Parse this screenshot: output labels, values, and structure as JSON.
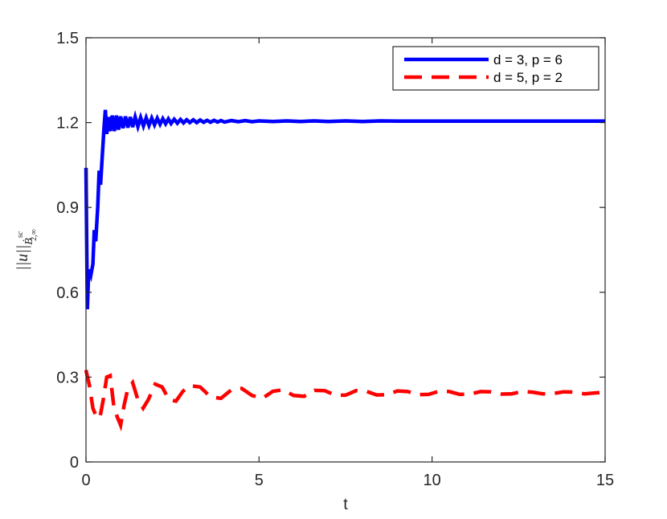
{
  "chart_data": {
    "type": "line",
    "xlabel": "t",
    "ylabel": {
      "norm": "||u||",
      "base": "Ḃ",
      "superscript": "sc",
      "subscript": "2,∞"
    },
    "xlim": [
      0,
      15
    ],
    "ylim": [
      0,
      1.5
    ],
    "xticks": [
      "0",
      "5",
      "10",
      "15"
    ],
    "yticks": [
      "0",
      "0.3",
      "0.6",
      "0.9",
      "1.2",
      "1.5"
    ],
    "grid": false,
    "legend_position": "top-right",
    "series": [
      {
        "name": "d = 3, p = 6",
        "color": "#0000ff",
        "style": "solid",
        "points": [
          [
            0.0,
            1.04
          ],
          [
            0.04,
            0.54
          ],
          [
            0.08,
            0.68
          ],
          [
            0.14,
            0.66
          ],
          [
            0.2,
            0.7
          ],
          [
            0.24,
            0.82
          ],
          [
            0.28,
            0.78
          ],
          [
            0.34,
            0.9
          ],
          [
            0.38,
            1.03
          ],
          [
            0.42,
            0.98
          ],
          [
            0.46,
            1.06
          ],
          [
            0.52,
            1.18
          ],
          [
            0.56,
            1.245
          ],
          [
            0.6,
            1.16
          ],
          [
            0.66,
            1.22
          ],
          [
            0.7,
            1.17
          ],
          [
            0.76,
            1.225
          ],
          [
            0.82,
            1.17
          ],
          [
            0.88,
            1.225
          ],
          [
            0.94,
            1.175
          ],
          [
            1.0,
            1.222
          ],
          [
            1.07,
            1.18
          ],
          [
            1.14,
            1.222
          ],
          [
            1.21,
            1.182
          ],
          [
            1.28,
            1.22
          ],
          [
            1.35,
            1.184
          ],
          [
            1.42,
            1.22
          ],
          [
            1.5,
            1.186
          ],
          [
            1.58,
            1.218
          ],
          [
            1.66,
            1.188
          ],
          [
            1.74,
            1.217
          ],
          [
            1.82,
            1.19
          ],
          [
            1.9,
            1.216
          ],
          [
            1.98,
            1.192
          ],
          [
            2.06,
            1.215
          ],
          [
            2.14,
            1.194
          ],
          [
            2.22,
            1.214
          ],
          [
            2.3,
            1.196
          ],
          [
            2.38,
            1.213
          ],
          [
            2.46,
            1.197
          ],
          [
            2.55,
            1.212
          ],
          [
            2.64,
            1.198
          ],
          [
            2.73,
            1.211
          ],
          [
            2.82,
            1.199
          ],
          [
            2.91,
            1.21
          ],
          [
            3.0,
            1.2
          ],
          [
            3.1,
            1.21
          ],
          [
            3.2,
            1.2
          ],
          [
            3.3,
            1.209
          ],
          [
            3.4,
            1.201
          ],
          [
            3.5,
            1.208
          ],
          [
            3.6,
            1.201
          ],
          [
            3.7,
            1.208
          ],
          [
            3.8,
            1.202
          ],
          [
            3.9,
            1.207
          ],
          [
            4.0,
            1.202
          ],
          [
            4.2,
            1.207
          ],
          [
            4.4,
            1.203
          ],
          [
            4.6,
            1.207
          ],
          [
            4.8,
            1.203
          ],
          [
            5.0,
            1.206
          ],
          [
            5.4,
            1.204
          ],
          [
            5.8,
            1.206
          ],
          [
            6.2,
            1.204
          ],
          [
            6.6,
            1.206
          ],
          [
            7.0,
            1.204
          ],
          [
            7.5,
            1.206
          ],
          [
            8.0,
            1.204
          ],
          [
            8.5,
            1.206
          ],
          [
            9.0,
            1.205
          ],
          [
            10.0,
            1.205
          ],
          [
            11.0,
            1.205
          ],
          [
            12.0,
            1.205
          ],
          [
            13.0,
            1.205
          ],
          [
            14.0,
            1.205
          ],
          [
            15.0,
            1.205
          ]
        ]
      },
      {
        "name": "d = 5, p = 2",
        "color": "#ff0000",
        "style": "dashed",
        "points": [
          [
            0.0,
            0.325
          ],
          [
            0.1,
            0.27
          ],
          [
            0.2,
            0.19
          ],
          [
            0.3,
            0.16
          ],
          [
            0.4,
            0.155
          ],
          [
            0.5,
            0.22
          ],
          [
            0.6,
            0.3
          ],
          [
            0.7,
            0.305
          ],
          [
            0.8,
            0.2
          ],
          [
            0.9,
            0.16
          ],
          [
            1.0,
            0.13
          ],
          [
            1.1,
            0.2
          ],
          [
            1.2,
            0.255
          ],
          [
            1.35,
            0.28
          ],
          [
            1.5,
            0.22
          ],
          [
            1.65,
            0.19
          ],
          [
            1.8,
            0.22
          ],
          [
            2.0,
            0.275
          ],
          [
            2.2,
            0.265
          ],
          [
            2.4,
            0.22
          ],
          [
            2.6,
            0.215
          ],
          [
            2.8,
            0.25
          ],
          [
            3.0,
            0.27
          ],
          [
            3.3,
            0.265
          ],
          [
            3.6,
            0.23
          ],
          [
            3.9,
            0.225
          ],
          [
            4.2,
            0.255
          ],
          [
            4.5,
            0.26
          ],
          [
            4.8,
            0.235
          ],
          [
            5.1,
            0.225
          ],
          [
            5.4,
            0.25
          ],
          [
            5.7,
            0.255
          ],
          [
            6.0,
            0.235
          ],
          [
            6.3,
            0.232
          ],
          [
            6.6,
            0.253
          ],
          [
            6.9,
            0.252
          ],
          [
            7.2,
            0.236
          ],
          [
            7.5,
            0.236
          ],
          [
            7.8,
            0.252
          ],
          [
            8.1,
            0.25
          ],
          [
            8.4,
            0.237
          ],
          [
            8.7,
            0.238
          ],
          [
            9.0,
            0.251
          ],
          [
            9.3,
            0.249
          ],
          [
            9.6,
            0.238
          ],
          [
            9.9,
            0.239
          ],
          [
            10.2,
            0.25
          ],
          [
            10.5,
            0.249
          ],
          [
            10.8,
            0.239
          ],
          [
            11.1,
            0.24
          ],
          [
            11.4,
            0.249
          ],
          [
            11.7,
            0.248
          ],
          [
            12.0,
            0.24
          ],
          [
            12.3,
            0.241
          ],
          [
            12.6,
            0.249
          ],
          [
            12.9,
            0.247
          ],
          [
            13.2,
            0.241
          ],
          [
            13.5,
            0.242
          ],
          [
            13.8,
            0.248
          ],
          [
            14.1,
            0.247
          ],
          [
            14.4,
            0.241
          ],
          [
            14.7,
            0.244
          ],
          [
            15.0,
            0.247
          ]
        ]
      }
    ]
  }
}
